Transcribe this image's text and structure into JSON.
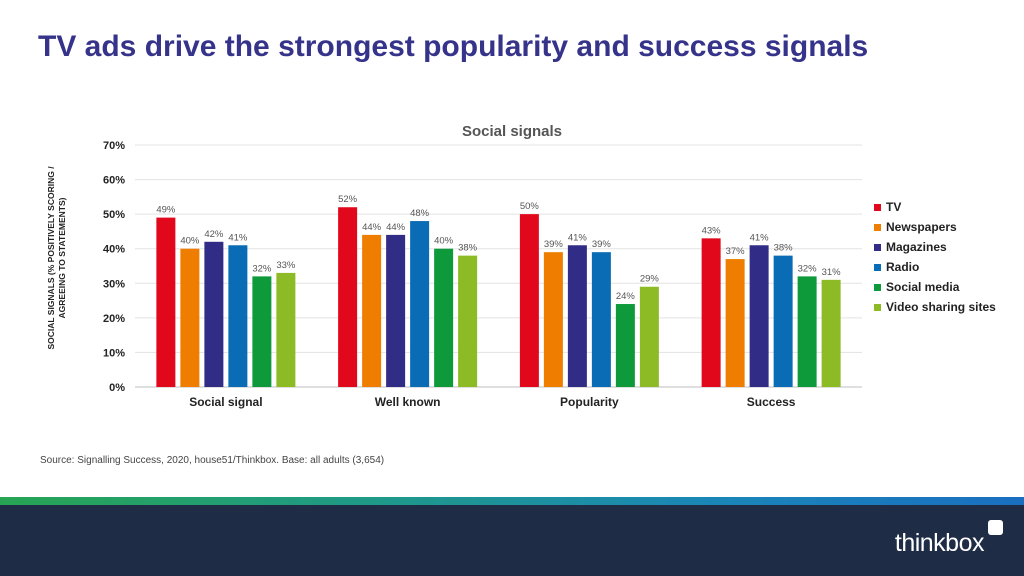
{
  "slide": {
    "title": "TV ads drive the strongest popularity and success signals",
    "source": "Source: Signalling Success, 2020, house51/Thinkbox. Base: all adults (3,654)",
    "logo_text": "thinkbox"
  },
  "chart_data": {
    "type": "bar",
    "title": "Social signals",
    "ylabel": "SOCIAL SIGNALS (% POSITIVELY SCORING / AGREEING TO STATEMENTS)",
    "ylim": [
      0,
      70
    ],
    "yticks": [
      0,
      10,
      20,
      30,
      40,
      50,
      60,
      70
    ],
    "ytick_suffix": "%",
    "grid": true,
    "legend_position": "right",
    "categories": [
      "Social signal",
      "Well known",
      "Popularity",
      "Success"
    ],
    "series": [
      {
        "name": "TV",
        "color": "#e2081c",
        "values": [
          49,
          52,
          50,
          43
        ]
      },
      {
        "name": "Newspapers",
        "color": "#ef7d00",
        "values": [
          40,
          44,
          39,
          37
        ]
      },
      {
        "name": "Magazines",
        "color": "#312d86",
        "values": [
          42,
          44,
          41,
          41
        ]
      },
      {
        "name": "Radio",
        "color": "#0a6cb4",
        "values": [
          41,
          48,
          39,
          38
        ]
      },
      {
        "name": "Social media",
        "color": "#0e9a3b",
        "values": [
          32,
          40,
          24,
          32
        ]
      },
      {
        "name": "Video sharing sites",
        "color": "#8dbb25",
        "values": [
          33,
          38,
          29,
          31
        ]
      }
    ]
  }
}
